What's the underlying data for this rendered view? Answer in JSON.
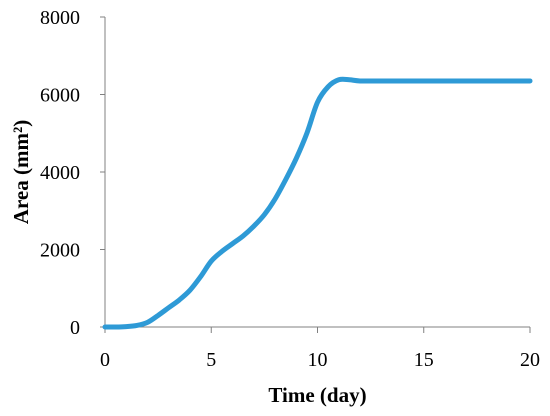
{
  "chart_data": {
    "type": "line",
    "title": "",
    "xlabel": "Time (day)",
    "ylabel": "Area (mm²)",
    "xlim": [
      0,
      20
    ],
    "ylim": [
      0,
      8000
    ],
    "xticks": [
      "0",
      "5",
      "10",
      "15",
      "20"
    ],
    "yticks": [
      "0",
      "2000",
      "4000",
      "6000",
      "8000"
    ],
    "grid": false,
    "legend": "none",
    "series": [
      {
        "color": "#2e9ad6",
        "x": [
          0,
          0.5,
          1,
          1.5,
          2,
          2.5,
          3,
          3.5,
          4,
          4.5,
          5,
          5.5,
          6,
          6.5,
          7,
          7.5,
          8,
          8.5,
          9,
          9.5,
          10,
          10.5,
          11,
          11.5,
          12,
          13,
          14,
          15,
          16,
          17,
          18,
          19,
          20
        ],
        "y": [
          0,
          0,
          10,
          40,
          120,
          300,
          500,
          700,
          950,
          1300,
          1700,
          1950,
          2150,
          2350,
          2600,
          2900,
          3300,
          3800,
          4350,
          5000,
          5800,
          6200,
          6380,
          6380,
          6350,
          6350,
          6350,
          6350,
          6350,
          6350,
          6350,
          6350,
          6350
        ]
      }
    ]
  }
}
